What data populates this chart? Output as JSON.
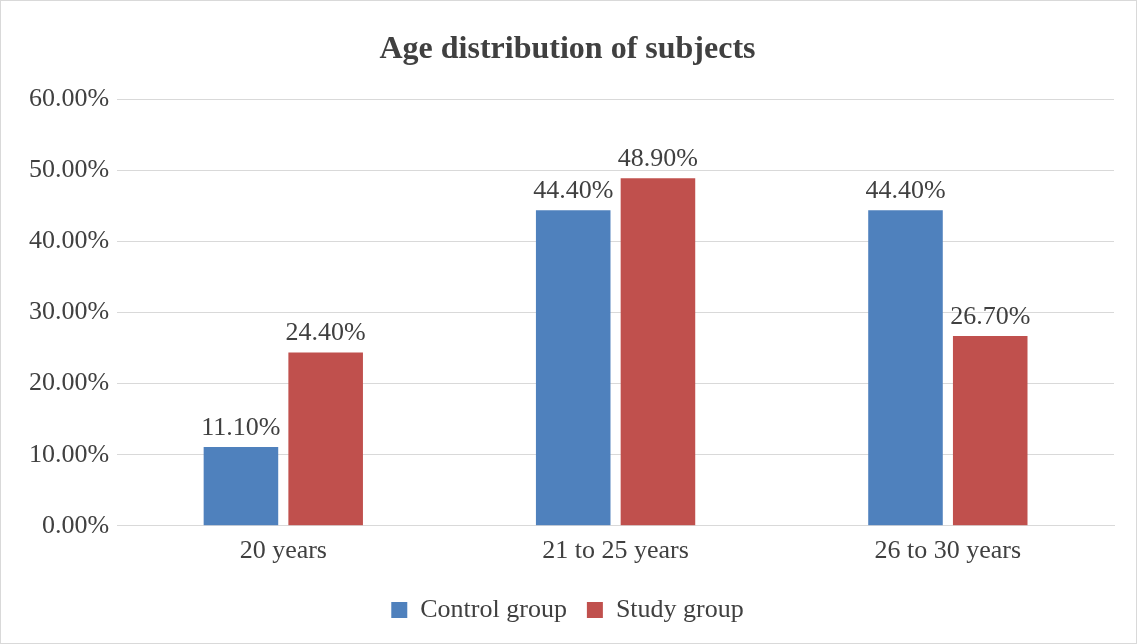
{
  "chart_data": {
    "type": "bar",
    "title": "Age distribution of subjects",
    "categories": [
      "20 years",
      "21 to 25 years",
      "26 to 30 years"
    ],
    "series": [
      {
        "name": "Control group",
        "color": "#4f81bd",
        "values": [
          11.1,
          44.4,
          44.4
        ],
        "value_labels": [
          "11.10%",
          "44.40%",
          "44.40%"
        ]
      },
      {
        "name": "Study group",
        "color": "#c0504d",
        "values": [
          24.4,
          48.9,
          26.7
        ],
        "value_labels": [
          "24.40%",
          "48.90%",
          "26.70%"
        ]
      }
    ],
    "ylim": [
      0,
      60
    ],
    "yticks": [
      {
        "value": 0,
        "label": "0.00%"
      },
      {
        "value": 10,
        "label": "10.00%"
      },
      {
        "value": 20,
        "label": "20.00%"
      },
      {
        "value": 30,
        "label": "30.00%"
      },
      {
        "value": 40,
        "label": "40.00%"
      },
      {
        "value": 50,
        "label": "50.00%"
      },
      {
        "value": 60,
        "label": "60.00%"
      }
    ],
    "grid": "y",
    "legend": "bottom"
  }
}
